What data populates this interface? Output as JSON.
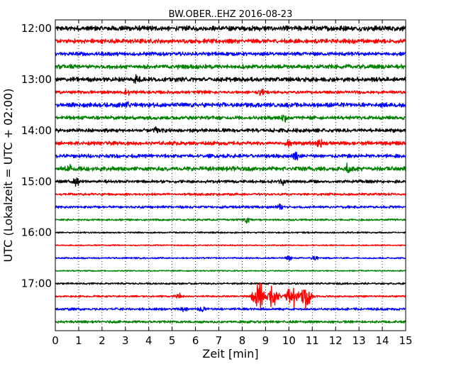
{
  "chart_data": {
    "type": "line",
    "title": "BW.OBER..EHZ 2016-08-23",
    "xlabel": "Zeit  [min]",
    "ylabel": "UTC (Lokalzeit = UTC + 02:00)",
    "xlim": [
      0,
      15
    ],
    "x_ticks": [
      "0",
      "1",
      "2",
      "3",
      "4",
      "5",
      "6",
      "7",
      "8",
      "9",
      "10",
      "11",
      "12",
      "13",
      "14",
      "15"
    ],
    "y_ticks": [
      {
        "label": "12:00",
        "trace_index": 0
      },
      {
        "label": "13:00",
        "trace_index": 4
      },
      {
        "label": "14:00",
        "trace_index": 8
      },
      {
        "label": "15:00",
        "trace_index": 12
      },
      {
        "label": "16:00",
        "trace_index": 16
      },
      {
        "label": "17:00",
        "trace_index": 20
      }
    ],
    "trace_interval_minutes": 15,
    "trace_count": 24,
    "trace_colors": [
      "#000000",
      "#ff0000",
      "#0000ff",
      "#008000"
    ],
    "grid": "vertical dotted",
    "traces": [
      {
        "start": "12:00",
        "amplitude": 0.8,
        "bursts": []
      },
      {
        "start": "12:15",
        "amplitude": 0.7,
        "bursts": []
      },
      {
        "start": "12:30",
        "amplitude": 0.6,
        "bursts": []
      },
      {
        "start": "12:45",
        "amplitude": 0.7,
        "bursts": []
      },
      {
        "start": "13:00",
        "amplitude": 0.7,
        "bursts": [
          {
            "t": 3.5,
            "amp": 1.2
          }
        ]
      },
      {
        "start": "13:15",
        "amplitude": 0.5,
        "bursts": [
          {
            "t": 3.1,
            "amp": 1.0
          },
          {
            "t": 8.8,
            "amp": 0.8
          }
        ]
      },
      {
        "start": "13:30",
        "amplitude": 0.7,
        "bursts": [
          {
            "t": 3.1,
            "amp": 1.0
          }
        ]
      },
      {
        "start": "13:45",
        "amplitude": 0.6,
        "bursts": [
          {
            "t": 9.8,
            "amp": 1.0
          }
        ]
      },
      {
        "start": "14:00",
        "amplitude": 0.6,
        "bursts": [
          {
            "t": 4.3,
            "amp": 1.0
          }
        ]
      },
      {
        "start": "14:15",
        "amplitude": 0.6,
        "bursts": [
          {
            "t": 10.0,
            "amp": 1.3
          },
          {
            "t": 11.3,
            "amp": 1.2
          }
        ]
      },
      {
        "start": "14:30",
        "amplitude": 0.6,
        "bursts": [
          {
            "t": 10.3,
            "amp": 0.9
          }
        ]
      },
      {
        "start": "14:45",
        "amplitude": 0.7,
        "bursts": [
          {
            "t": 0.6,
            "amp": 1.0
          },
          {
            "t": 12.5,
            "amp": 1.1
          }
        ]
      },
      {
        "start": "15:00",
        "amplitude": 0.5,
        "bursts": [
          {
            "t": 0.9,
            "amp": 1.3
          },
          {
            "t": 9.7,
            "amp": 0.9
          }
        ]
      },
      {
        "start": "15:15",
        "amplitude": 0.4,
        "bursts": []
      },
      {
        "start": "15:30",
        "amplitude": 0.4,
        "bursts": [
          {
            "t": 9.6,
            "amp": 0.8
          }
        ]
      },
      {
        "start": "15:45",
        "amplitude": 0.3,
        "bursts": [
          {
            "t": 8.2,
            "amp": 1.2
          }
        ]
      },
      {
        "start": "16:00",
        "amplitude": 0.25,
        "bursts": []
      },
      {
        "start": "16:15",
        "amplitude": 0.2,
        "bursts": []
      },
      {
        "start": "16:30",
        "amplitude": 0.25,
        "bursts": [
          {
            "t": 10.0,
            "amp": 0.7
          },
          {
            "t": 11.1,
            "amp": 1.0
          }
        ]
      },
      {
        "start": "16:45",
        "amplitude": 0.2,
        "bursts": []
      },
      {
        "start": "17:00",
        "amplitude": 0.3,
        "bursts": []
      },
      {
        "start": "17:15",
        "amplitude": 0.3,
        "bursts": [
          {
            "t": 5.3,
            "amp": 0.9
          },
          {
            "t": 8.7,
            "amp": 4.5
          },
          {
            "t": 9.3,
            "amp": 3.5
          },
          {
            "t": 10.1,
            "amp": 4.0
          },
          {
            "t": 10.7,
            "amp": 3.8
          }
        ]
      },
      {
        "start": "17:30",
        "amplitude": 0.4,
        "bursts": [
          {
            "t": 5.5,
            "amp": 0.8
          },
          {
            "t": 6.3,
            "amp": 0.8
          }
        ]
      },
      {
        "start": "17:45",
        "amplitude": 0.4,
        "bursts": []
      }
    ]
  }
}
